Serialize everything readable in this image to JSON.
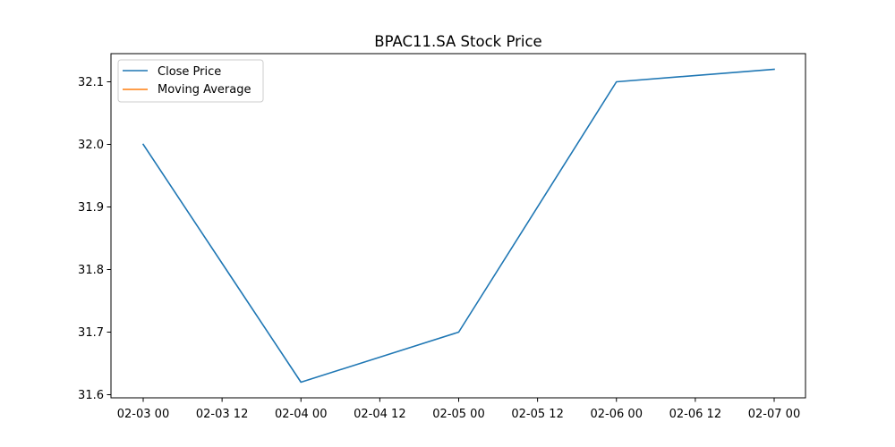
{
  "chart_data": {
    "type": "line",
    "title": "BPAC11.SA Stock Price",
    "xlabel": "",
    "ylabel": "",
    "x": [
      "02-03 00",
      "02-04 00",
      "02-05 00",
      "02-06 00",
      "02-07 00"
    ],
    "x_ticks": [
      "02-03 00",
      "02-03 12",
      "02-04 00",
      "02-04 12",
      "02-05 00",
      "02-05 12",
      "02-06 00",
      "02-06 12",
      "02-07 00"
    ],
    "y_ticks": [
      "31.6",
      "31.7",
      "31.8",
      "31.9",
      "32.0",
      "32.1"
    ],
    "ylim": [
      31.595,
      32.145
    ],
    "grid": false,
    "legend_position": "upper-left",
    "series": [
      {
        "name": "Close Price",
        "color": "#1f77b4",
        "values": [
          32.0,
          31.62,
          31.7,
          32.1,
          32.12
        ]
      },
      {
        "name": "Moving Average",
        "color": "#ff7f0e",
        "values": [
          null,
          null,
          null,
          null,
          null
        ]
      }
    ]
  }
}
